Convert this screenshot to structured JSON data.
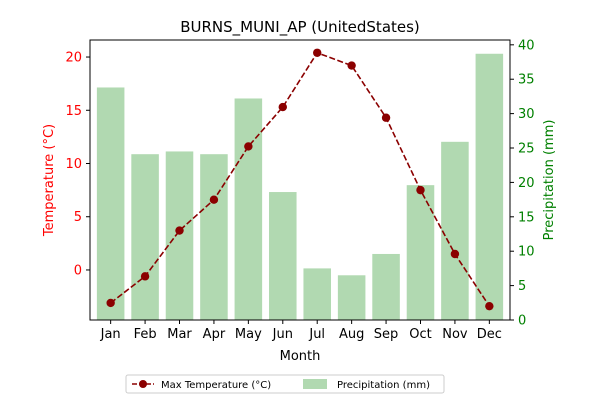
{
  "chart_data": {
    "type": "bar+line",
    "title": "BURNS_MUNI_AP (UnitedStates)",
    "xlabel": "Month",
    "ylabel_left": "Temperature (°C)",
    "ylabel_right": "Precipitation (mm)",
    "categories": [
      "Jan",
      "Feb",
      "Mar",
      "Apr",
      "May",
      "Jun",
      "Jul",
      "Aug",
      "Sep",
      "Oct",
      "Nov",
      "Dec"
    ],
    "ylim_left": [
      -4.7,
      21.6
    ],
    "ylim_right": [
      0,
      40.7
    ],
    "yticks_left": [
      "0",
      "5",
      "10",
      "15",
      "20"
    ],
    "yticks_right": [
      "0",
      "5",
      "10",
      "15",
      "20",
      "25",
      "30",
      "35",
      "40"
    ],
    "series": [
      {
        "name": "Max Temperature (°C)",
        "type": "line",
        "axis": "left",
        "values": [
          -3.1,
          -0.6,
          3.7,
          6.6,
          11.6,
          15.3,
          20.4,
          19.2,
          14.3,
          7.5,
          1.5,
          -3.4
        ]
      },
      {
        "name": "Precipitation (mm)",
        "type": "bar",
        "axis": "right",
        "values": [
          33.8,
          24.1,
          24.5,
          24.1,
          32.2,
          18.6,
          7.5,
          6.5,
          9.6,
          19.6,
          25.9,
          38.7
        ]
      }
    ],
    "colors": {
      "temperature": "#8b0000",
      "temperature_axis": "#ff0000",
      "precipitation_bar": "#b1d9b1",
      "precipitation_axis": "#008000",
      "axis": "#000000"
    },
    "legend": {
      "placement": "bottom-center",
      "items": [
        "Max Temperature (°C)",
        "Precipitation (mm)"
      ]
    }
  }
}
